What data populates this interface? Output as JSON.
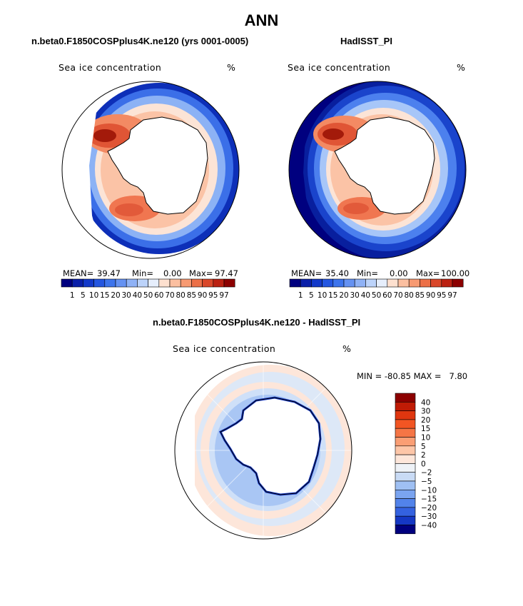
{
  "title": "ANN",
  "panels": [
    {
      "title": "n.beta0.F1850COSPplus4K.ne120 (yrs 0001-0005)",
      "variable": "Sea ice concentration",
      "units": "%",
      "stats": {
        "mean_label": "MEAN=",
        "mean": "39.47",
        "min_label": "Min=",
        "min": "0.00",
        "max_label": "Max=",
        "max": "97.47"
      }
    },
    {
      "title": "HadISST_PI",
      "variable": "Sea ice concentration",
      "units": "%",
      "stats": {
        "mean_label": "MEAN=",
        "mean": "35.40",
        "min_label": "Min=",
        "min": "0.00",
        "max_label": "Max=",
        "max": "100.00"
      }
    },
    {
      "title": "n.beta0.F1850COSPplus4K.ne120 - HadISST_PI",
      "variable": "Sea ice concentration",
      "units": "%",
      "minmax": "MIN = -80.85 MAX =   7.80"
    }
  ],
  "abs_colorbar": {
    "labels": [
      "1",
      "5",
      "10",
      "15",
      "20",
      "30",
      "40",
      "50",
      "60",
      "70",
      "80",
      "85",
      "90",
      "95",
      "97"
    ],
    "colors": [
      "#00007f",
      "#0a1fa8",
      "#1339c9",
      "#2456e0",
      "#3d74ec",
      "#6592f2",
      "#8fb2f6",
      "#bcd3fa",
      "#e6eefc",
      "#fde0cf",
      "#fbbfa0",
      "#f79a72",
      "#ec7048",
      "#d9472a",
      "#bb2112",
      "#8c0000"
    ]
  },
  "diff_colorbar": {
    "labels": [
      "40",
      "30",
      "20",
      "15",
      "10",
      "5",
      "2",
      "0",
      "−2",
      "−5",
      "−10",
      "−15",
      "−20",
      "−30",
      "−40"
    ],
    "colors": [
      "#8c0000",
      "#c01b05",
      "#e0360f",
      "#f25523",
      "#f57545",
      "#fa9e74",
      "#fdc6a8",
      "#fde6da",
      "#eef2f7",
      "#c9dbf5",
      "#9fc0f3",
      "#7aa4f0",
      "#5283ea",
      "#3462e0",
      "#1538c4",
      "#00007f"
    ]
  }
}
